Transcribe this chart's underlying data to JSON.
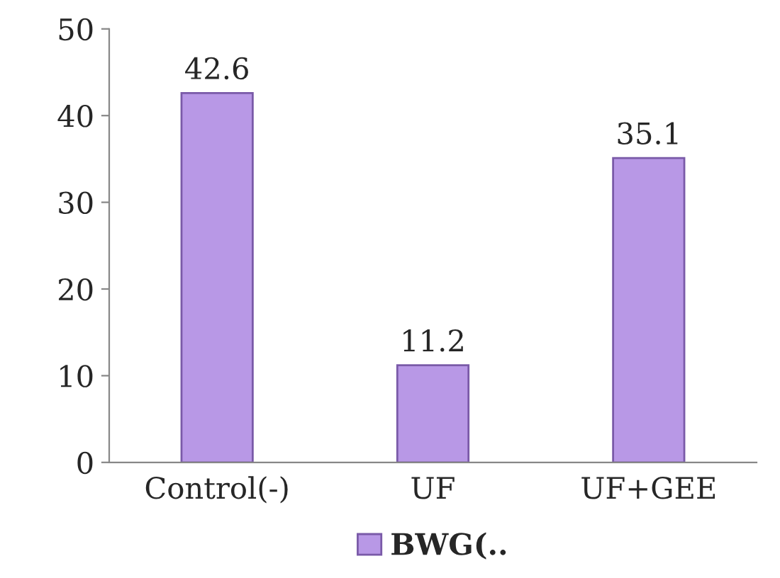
{
  "chart_data": {
    "type": "bar",
    "categories": [
      "Control(-)",
      "UF",
      "UF+GEE"
    ],
    "series": [
      {
        "name": "BWG(..",
        "color": "#b898e6",
        "values": [
          42.6,
          11.2,
          35.1
        ]
      }
    ],
    "ylim": [
      0,
      50
    ],
    "yticks": [
      0,
      10,
      20,
      30,
      40,
      50
    ],
    "data_labels": true,
    "grid": false,
    "legend": "bottom"
  }
}
